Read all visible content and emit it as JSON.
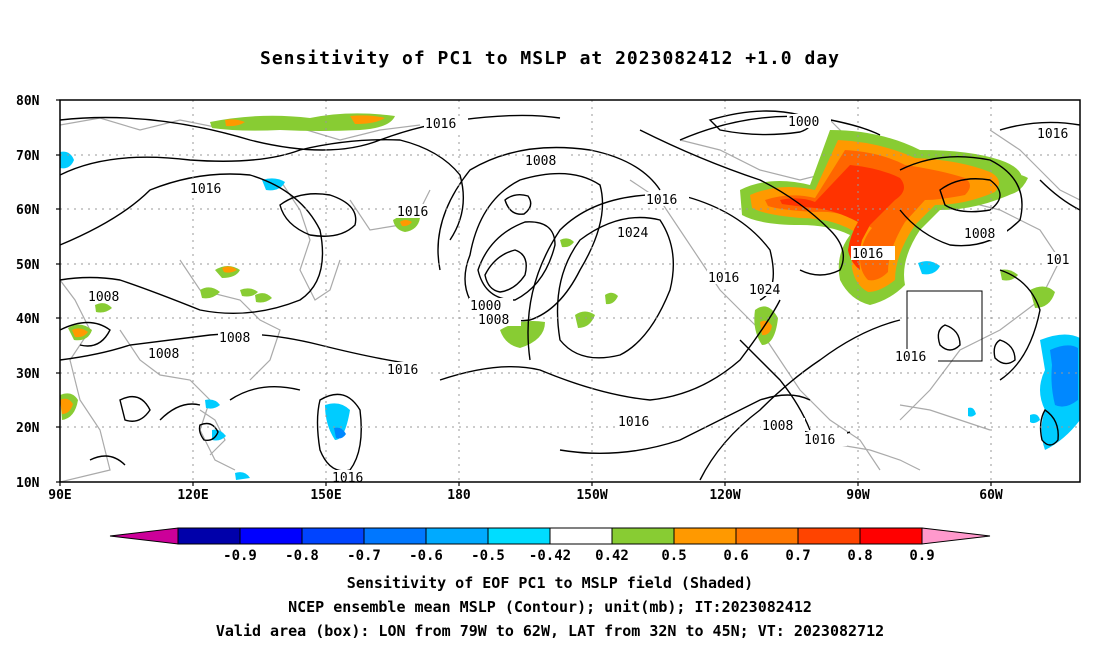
{
  "title": "Sensitivity of PC1 to MSLP at 2023082412 +1.0 day",
  "map": {
    "lat_labels": [
      "80N",
      "70N",
      "60N",
      "50N",
      "40N",
      "30N",
      "20N",
      "10N"
    ],
    "lon_labels": [
      "90E",
      "120E",
      "150E",
      "180",
      "150W",
      "120W",
      "90W",
      "60W"
    ],
    "contour_labels": [
      "1016",
      "1000",
      "1016",
      "1008",
      "1016",
      "1016",
      "1024",
      "1016",
      "1008",
      "1016",
      "1016",
      "1008",
      "1000",
      "1008",
      "1008",
      "1016",
      "1016",
      "1024",
      "1008",
      "1016",
      "1016",
      "1008",
      "1016",
      "101"
    ],
    "valid_box": {
      "lon_from": "79W",
      "lon_to": "62W",
      "lat_from": "32N",
      "lat_to": "45N"
    },
    "colors": {
      "land": "#aaaaaa",
      "contour": "#000000",
      "green": "#88cc33",
      "orange": "#ff9900",
      "dark_orange": "#ff6600",
      "red_orange": "#ff3300",
      "cyan": "#00ccff",
      "blue": "#0088ff"
    }
  },
  "colorbar": {
    "labels": [
      "-0.9",
      "-0.8",
      "-0.7",
      "-0.6",
      "-0.5",
      "-0.42",
      "0.42",
      "0.5",
      "0.6",
      "0.7",
      "0.8",
      "0.9"
    ],
    "colors": [
      "#0000aa",
      "#0000ff",
      "#0044ff",
      "#0077ff",
      "#00aaff",
      "#00ddff",
      "#ffffff",
      "#88cc33",
      "#ff9900",
      "#ff7700",
      "#ff4400",
      "#ff0000"
    ],
    "left_tip": "#cc0099",
    "right_tip": "#ff99cc"
  },
  "footer": {
    "line1": "Sensitivity of EOF PC1 to MSLP field (Shaded)",
    "line2": "NCEP ensemble mean MSLP (Contour); unit(mb); IT:2023082412",
    "line3": "Valid area (box): LON from 79W to 62W, LAT from 32N to 45N; VT: 2023082712"
  }
}
